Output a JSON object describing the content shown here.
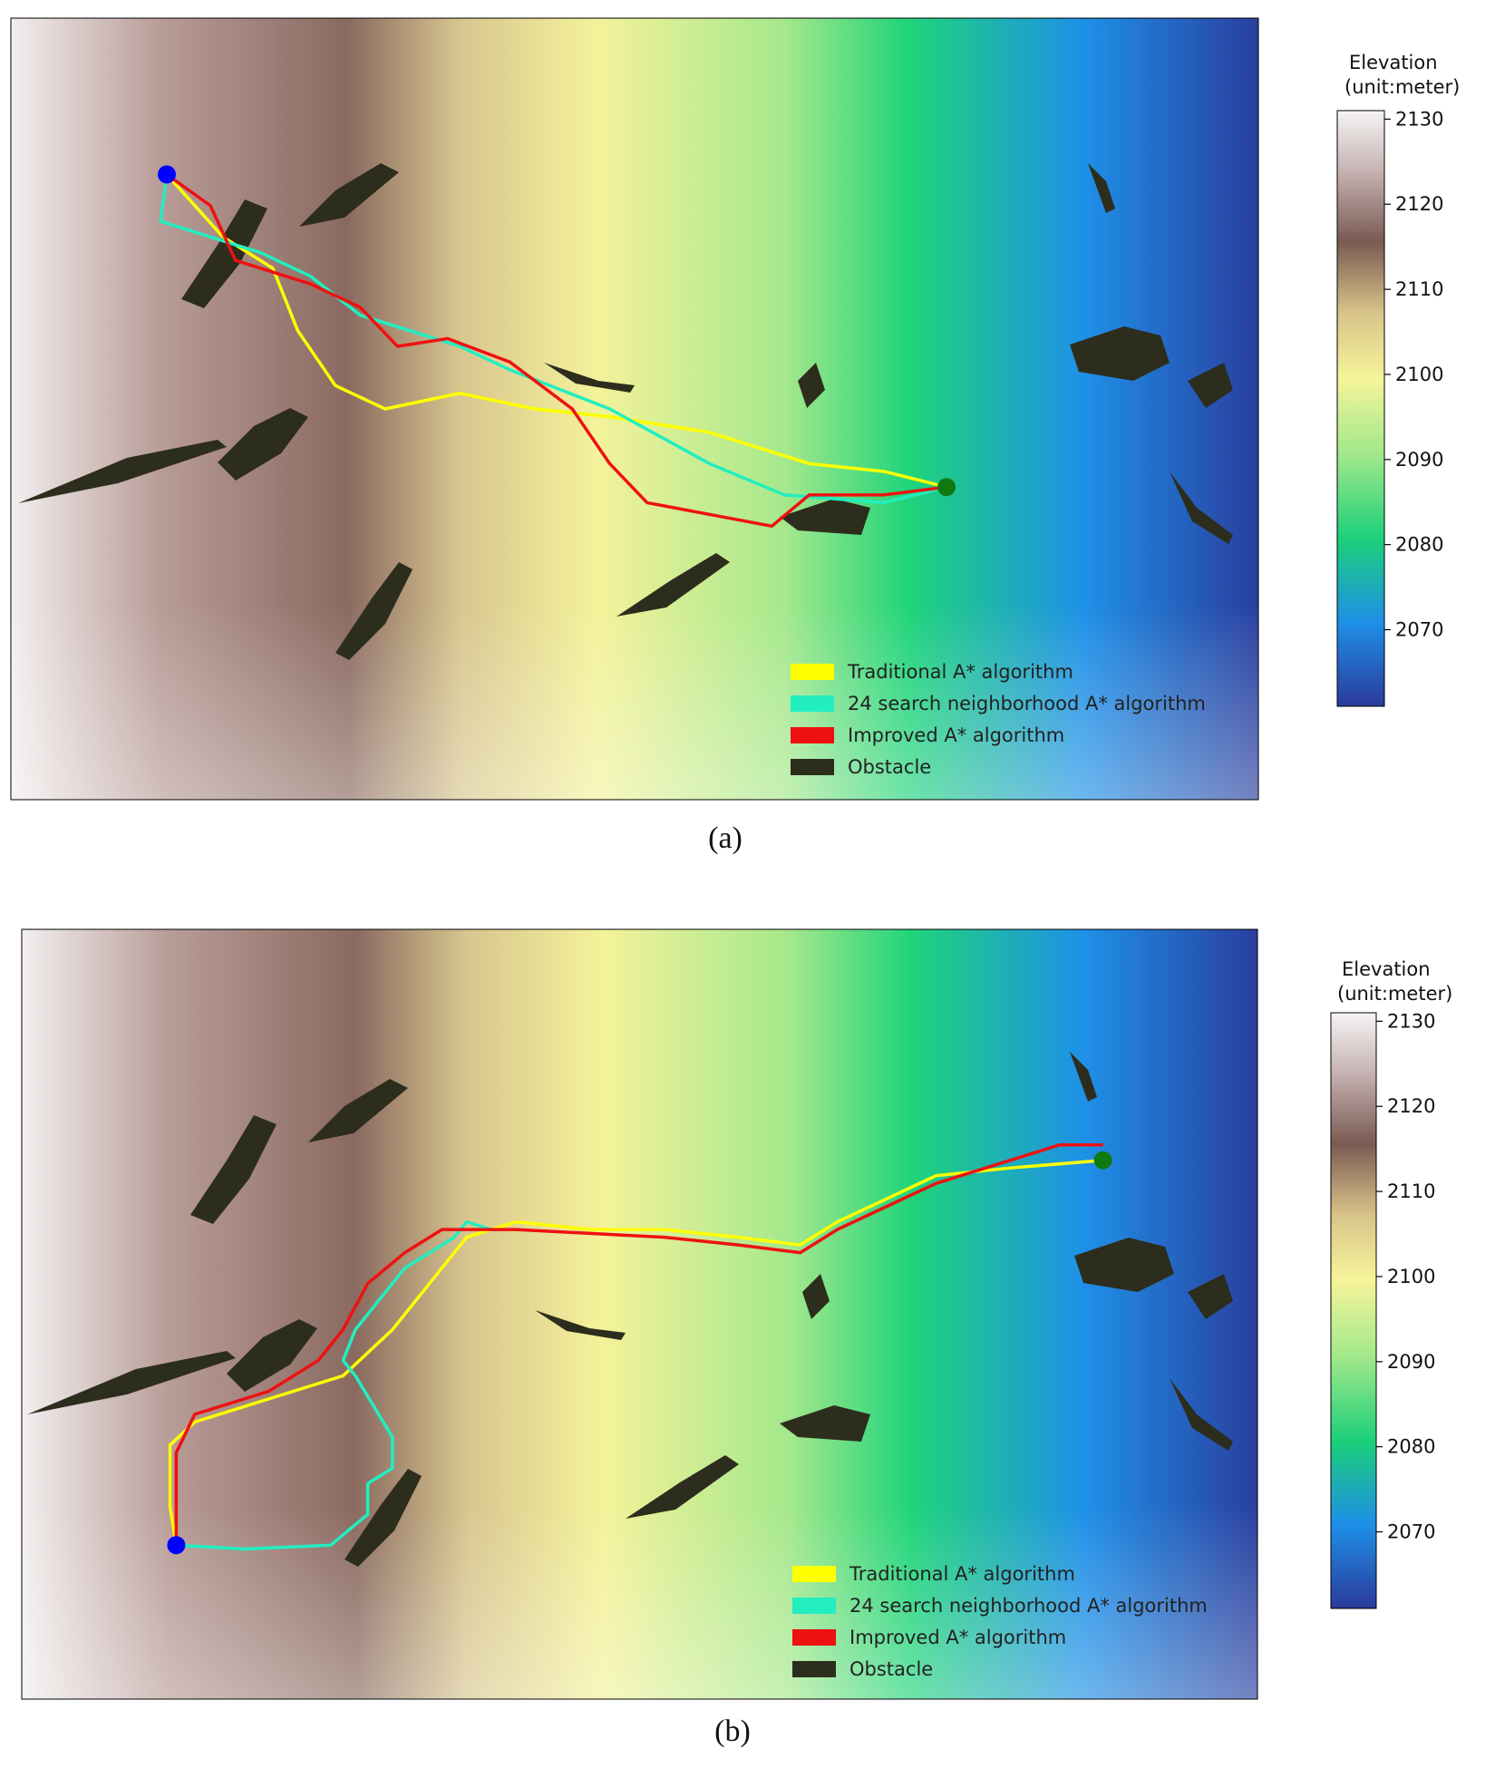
{
  "chart_data": [
    {
      "type": "heatmap",
      "panel_label": "(a)",
      "colorbar": {
        "title_line1": "Elevation",
        "title_line2": "(unit:meter)",
        "range": [
          2061,
          2131
        ],
        "ticks": [
          2070,
          2080,
          2090,
          2100,
          2110,
          2120,
          2130
        ],
        "colors": [
          "#2b3a9a",
          "#1e8fe8",
          "#1ccf7a",
          "#9fe88a",
          "#f6f49a",
          "#d8c489",
          "#7a5a52",
          "#c7b3b3",
          "#f6f4f4"
        ]
      },
      "start_marker": {
        "color": "#0000ff",
        "x": 0.125,
        "y": 0.8
      },
      "end_marker": {
        "color": "#107a10",
        "x": 0.75,
        "y": 0.4
      },
      "legend": {
        "position": "lower-right",
        "entries": [
          {
            "label": "Traditional A* algorithm",
            "color": "#ffff00"
          },
          {
            "label": "24 search neighborhood A* algorithm",
            "color": "#22eec0"
          },
          {
            "label": "Improved A* algorithm",
            "color": "#ee1111"
          },
          {
            "label": "Obstacle",
            "color": "#2d2d1d"
          }
        ]
      },
      "series": [
        {
          "color": "#ffff00",
          "points": [
            [
              0.125,
              0.8
            ],
            [
              0.17,
              0.72
            ],
            [
              0.21,
              0.68
            ],
            [
              0.23,
              0.6
            ],
            [
              0.26,
              0.53
            ],
            [
              0.3,
              0.5
            ],
            [
              0.36,
              0.52
            ],
            [
              0.42,
              0.5
            ],
            [
              0.48,
              0.49
            ],
            [
              0.56,
              0.47
            ],
            [
              0.64,
              0.43
            ],
            [
              0.7,
              0.42
            ],
            [
              0.75,
              0.4
            ]
          ]
        },
        {
          "color": "#22eec0",
          "points": [
            [
              0.125,
              0.8
            ],
            [
              0.12,
              0.74
            ],
            [
              0.16,
              0.72
            ],
            [
              0.2,
              0.7
            ],
            [
              0.24,
              0.67
            ],
            [
              0.28,
              0.62
            ],
            [
              0.32,
              0.6
            ],
            [
              0.36,
              0.58
            ],
            [
              0.4,
              0.55
            ],
            [
              0.48,
              0.5
            ],
            [
              0.56,
              0.43
            ],
            [
              0.62,
              0.39
            ],
            [
              0.7,
              0.38
            ],
            [
              0.75,
              0.4
            ]
          ]
        },
        {
          "color": "#ee1111",
          "points": [
            [
              0.125,
              0.8
            ],
            [
              0.16,
              0.76
            ],
            [
              0.18,
              0.69
            ],
            [
              0.2,
              0.68
            ],
            [
              0.24,
              0.66
            ],
            [
              0.28,
              0.63
            ],
            [
              0.31,
              0.58
            ],
            [
              0.35,
              0.59
            ],
            [
              0.4,
              0.56
            ],
            [
              0.45,
              0.5
            ],
            [
              0.48,
              0.43
            ],
            [
              0.51,
              0.38
            ],
            [
              0.61,
              0.35
            ],
            [
              0.64,
              0.39
            ],
            [
              0.7,
              0.39
            ],
            [
              0.75,
              0.4
            ]
          ]
        }
      ]
    },
    {
      "type": "heatmap",
      "panel_label": "(b)",
      "colorbar": {
        "title_line1": "Elevation",
        "title_line2": "(unit:meter)",
        "range": [
          2061,
          2131
        ],
        "ticks": [
          2070,
          2080,
          2090,
          2100,
          2110,
          2120,
          2130
        ],
        "colors": [
          "#2b3a9a",
          "#1e8fe8",
          "#1ccf7a",
          "#9fe88a",
          "#f6f49a",
          "#d8c489",
          "#7a5a52",
          "#c7b3b3",
          "#f6f4f4"
        ]
      },
      "start_marker": {
        "color": "#0000ff",
        "x": 0.125,
        "y": 0.2
      },
      "end_marker": {
        "color": "#107a10",
        "x": 0.875,
        "y": 0.7
      },
      "legend": {
        "position": "lower-right",
        "entries": [
          {
            "label": "Traditional A* algorithm",
            "color": "#ffff00"
          },
          {
            "label": "24 search neighborhood A* algorithm",
            "color": "#22eec0"
          },
          {
            "label": "Improved A* algorithm",
            "color": "#ee1111"
          },
          {
            "label": "Obstacle",
            "color": "#2d2d1d"
          }
        ]
      },
      "series": [
        {
          "color": "#ffff00",
          "points": [
            [
              0.125,
              0.2
            ],
            [
              0.12,
              0.25
            ],
            [
              0.12,
              0.33
            ],
            [
              0.14,
              0.36
            ],
            [
              0.2,
              0.39
            ],
            [
              0.26,
              0.42
            ],
            [
              0.3,
              0.48
            ],
            [
              0.32,
              0.52
            ],
            [
              0.34,
              0.56
            ],
            [
              0.36,
              0.6
            ],
            [
              0.4,
              0.62
            ],
            [
              0.46,
              0.61
            ],
            [
              0.52,
              0.61
            ],
            [
              0.58,
              0.6
            ],
            [
              0.63,
              0.59
            ],
            [
              0.66,
              0.62
            ],
            [
              0.7,
              0.65
            ],
            [
              0.74,
              0.68
            ],
            [
              0.8,
              0.69
            ],
            [
              0.875,
              0.7
            ]
          ]
        },
        {
          "color": "#22eec0",
          "points": [
            [
              0.125,
              0.2
            ],
            [
              0.18,
              0.195
            ],
            [
              0.25,
              0.2
            ],
            [
              0.28,
              0.24
            ],
            [
              0.28,
              0.28
            ],
            [
              0.3,
              0.3
            ],
            [
              0.3,
              0.34
            ],
            [
              0.27,
              0.42
            ],
            [
              0.26,
              0.44
            ],
            [
              0.27,
              0.48
            ],
            [
              0.29,
              0.52
            ],
            [
              0.31,
              0.56
            ],
            [
              0.33,
              0.58
            ],
            [
              0.35,
              0.6
            ],
            [
              0.36,
              0.62
            ],
            [
              0.38,
              0.61
            ]
          ]
        },
        {
          "color": "#ee1111",
          "points": [
            [
              0.125,
              0.2
            ],
            [
              0.125,
              0.32
            ],
            [
              0.14,
              0.37
            ],
            [
              0.2,
              0.4
            ],
            [
              0.24,
              0.44
            ],
            [
              0.26,
              0.48
            ],
            [
              0.28,
              0.54
            ],
            [
              0.31,
              0.58
            ],
            [
              0.34,
              0.61
            ],
            [
              0.4,
              0.61
            ],
            [
              0.46,
              0.605
            ],
            [
              0.52,
              0.6
            ],
            [
              0.58,
              0.59
            ],
            [
              0.63,
              0.58
            ],
            [
              0.66,
              0.61
            ],
            [
              0.7,
              0.64
            ],
            [
              0.74,
              0.67
            ],
            [
              0.8,
              0.7
            ],
            [
              0.84,
              0.72
            ],
            [
              0.875,
              0.72
            ]
          ]
        }
      ]
    }
  ]
}
